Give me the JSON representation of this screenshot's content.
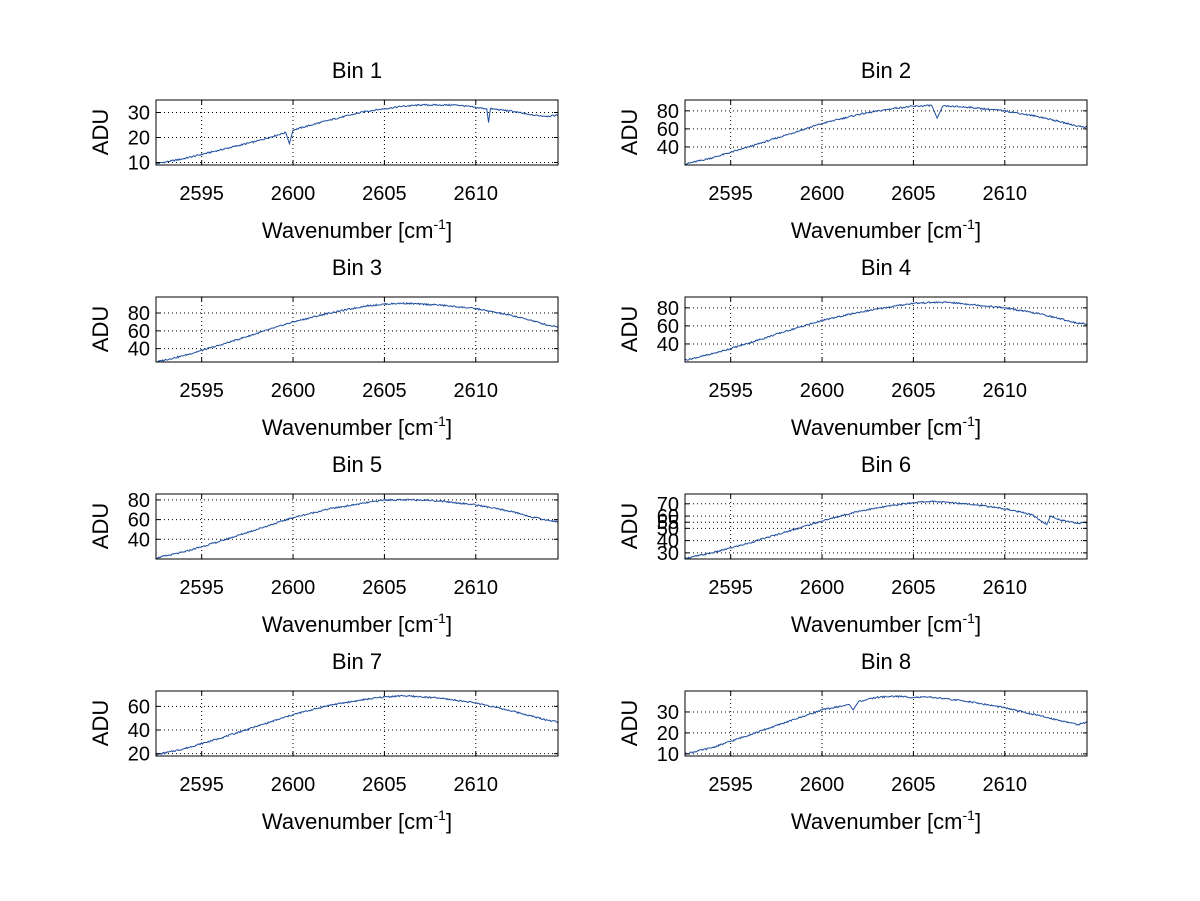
{
  "figure": {
    "background": "#ffffff",
    "line_color": "#1f4e9f",
    "grid_color": "#000000"
  },
  "chart_data": [
    {
      "type": "line",
      "title": "Bin 1",
      "xlabel": {
        "main": "Wavenumber [cm",
        "sup": "-1",
        "close": "]"
      },
      "ylabel": "ADU",
      "xlim": [
        2592.5,
        2614.5
      ],
      "ylim": [
        9,
        35
      ],
      "xticks": [
        2595,
        2600,
        2605,
        2610
      ],
      "yticks": [
        10,
        20,
        30
      ],
      "grid": true,
      "series": [
        {
          "name": "Bin 1",
          "x": [
            2592.5,
            2594,
            2596,
            2598,
            2599.6,
            2599.8,
            2600,
            2602,
            2604,
            2606,
            2607,
            2608,
            2609,
            2610,
            2610.6,
            2610.7,
            2610.8,
            2612,
            2613,
            2614,
            2614.5
          ],
          "y": [
            9.5,
            11.5,
            15,
            18.5,
            22,
            17.5,
            23,
            27,
            30.5,
            32.5,
            33,
            33,
            33,
            32,
            31.5,
            26,
            31.5,
            30.5,
            29,
            28.5,
            29
          ]
        }
      ]
    },
    {
      "type": "line",
      "title": "Bin 2",
      "xlabel": {
        "main": "Wavenumber [cm",
        "sup": "-1",
        "close": "]"
      },
      "ylabel": "ADU",
      "xlim": [
        2592.5,
        2614.5
      ],
      "ylim": [
        20,
        92
      ],
      "xticks": [
        2595,
        2600,
        2605,
        2610
      ],
      "yticks": [
        40,
        60,
        80
      ],
      "grid": true,
      "series": [
        {
          "name": "Bin 2",
          "x": [
            2592.5,
            2594,
            2596,
            2598,
            2600,
            2602,
            2604,
            2605,
            2606,
            2606.3,
            2606.6,
            2607,
            2608,
            2610,
            2612,
            2613,
            2614,
            2614.5
          ],
          "y": [
            21,
            28,
            40,
            53,
            66,
            76,
            83,
            85,
            86,
            72,
            85,
            85,
            84,
            80,
            73,
            68,
            63,
            62
          ]
        }
      ]
    },
    {
      "type": "line",
      "title": "Bin 3",
      "xlabel": {
        "main": "Wavenumber [cm",
        "sup": "-1",
        "close": "]"
      },
      "ylabel": "ADU",
      "xlim": [
        2592.5,
        2614.5
      ],
      "ylim": [
        25,
        98
      ],
      "xticks": [
        2595,
        2600,
        2605,
        2610
      ],
      "yticks": [
        40,
        60,
        80
      ],
      "grid": true,
      "series": [
        {
          "name": "Bin 3",
          "x": [
            2592.5,
            2594,
            2596,
            2598,
            2600,
            2602,
            2604,
            2605,
            2606,
            2607,
            2608,
            2610,
            2612,
            2613,
            2614,
            2614.5
          ],
          "y": [
            25,
            32,
            44,
            57,
            70,
            80,
            88,
            90,
            91,
            90,
            89,
            85,
            77,
            72,
            66,
            65
          ]
        }
      ]
    },
    {
      "type": "line",
      "title": "Bin 4",
      "xlabel": {
        "main": "Wavenumber [cm",
        "sup": "-1",
        "close": "]"
      },
      "ylabel": "ADU",
      "xlim": [
        2592.5,
        2614.5
      ],
      "ylim": [
        20,
        92
      ],
      "xticks": [
        2595,
        2600,
        2605,
        2610
      ],
      "yticks": [
        40,
        60,
        80
      ],
      "grid": true,
      "series": [
        {
          "name": "Bin 4",
          "x": [
            2592.5,
            2594,
            2596,
            2598,
            2600,
            2602,
            2604,
            2605,
            2606,
            2607,
            2608,
            2610,
            2612,
            2613,
            2614,
            2614.5
          ],
          "y": [
            22,
            29,
            41,
            54,
            66,
            75,
            82,
            85,
            86,
            86,
            84,
            80,
            73,
            68,
            63,
            62
          ]
        }
      ]
    },
    {
      "type": "line",
      "title": "Bin 5",
      "xlabel": {
        "main": "Wavenumber [cm",
        "sup": "-1",
        "close": "]"
      },
      "ylabel": "ADU",
      "xlim": [
        2592.5,
        2614.5
      ],
      "ylim": [
        20,
        86
      ],
      "xticks": [
        2595,
        2600,
        2605,
        2610
      ],
      "yticks": [
        40,
        60,
        80
      ],
      "grid": true,
      "series": [
        {
          "name": "Bin 5",
          "x": [
            2592.5,
            2594,
            2596,
            2598,
            2600,
            2602,
            2604,
            2605,
            2606,
            2607,
            2608,
            2610,
            2612,
            2613,
            2614,
            2614.5
          ],
          "y": [
            21,
            27,
            38,
            50,
            62,
            71,
            77,
            80,
            80,
            80,
            79,
            75,
            68,
            63,
            59,
            58
          ]
        }
      ]
    },
    {
      "type": "line",
      "title": "Bin 6",
      "xlabel": {
        "main": "Wavenumber [cm",
        "sup": "-1",
        "close": "]"
      },
      "ylabel": "ADU",
      "xlim": [
        2592.5,
        2614.5
      ],
      "ylim": [
        25,
        78
      ],
      "xticks": [
        2595,
        2600,
        2605,
        2610
      ],
      "yticks": [
        30,
        40,
        50,
        55,
        60,
        70
      ],
      "grid": true,
      "series": [
        {
          "name": "Bin 6",
          "x": [
            2592.5,
            2594,
            2596,
            2598,
            2600,
            2602,
            2604,
            2605,
            2606,
            2607,
            2608,
            2610,
            2611.5,
            2612.3,
            2612.5,
            2613,
            2614,
            2614.5
          ],
          "y": [
            25.5,
            30,
            38,
            47,
            56,
            64,
            69,
            71,
            72,
            71,
            70,
            66,
            61,
            53,
            60,
            57,
            54,
            55
          ]
        }
      ]
    },
    {
      "type": "line",
      "title": "Bin 7",
      "xlabel": {
        "main": "Wavenumber [cm",
        "sup": "-1",
        "close": "]"
      },
      "ylabel": "ADU",
      "xlim": [
        2592.5,
        2614.5
      ],
      "ylim": [
        18,
        73
      ],
      "xticks": [
        2595,
        2600,
        2605,
        2610
      ],
      "yticks": [
        20,
        40,
        60
      ],
      "grid": true,
      "series": [
        {
          "name": "Bin 7",
          "x": [
            2592.5,
            2594,
            2596,
            2598,
            2600,
            2602,
            2604,
            2605,
            2606,
            2607,
            2608,
            2610,
            2612,
            2613,
            2614,
            2614.5
          ],
          "y": [
            19,
            24,
            33,
            43,
            53,
            61,
            66,
            68,
            69,
            68,
            67,
            63,
            56,
            52,
            48,
            47
          ]
        }
      ]
    },
    {
      "type": "line",
      "title": "Bin 8",
      "xlabel": {
        "main": "Wavenumber [cm",
        "sup": "-1",
        "close": "]"
      },
      "ylabel": "ADU",
      "xlim": [
        2592.5,
        2614.5
      ],
      "ylim": [
        9,
        40
      ],
      "xticks": [
        2595,
        2600,
        2605,
        2610
      ],
      "yticks": [
        10,
        20,
        30
      ],
      "grid": true,
      "series": [
        {
          "name": "Bin 8",
          "x": [
            2592.5,
            2594,
            2596,
            2598,
            2600,
            2601.5,
            2601.7,
            2602,
            2603,
            2604,
            2605,
            2606,
            2607,
            2608,
            2610,
            2612,
            2613,
            2614,
            2614.5
          ],
          "y": [
            10,
            13,
            19,
            25,
            31,
            33.5,
            31,
            35,
            37,
            37.5,
            37,
            37,
            36,
            35,
            32,
            28,
            26,
            24,
            25
          ]
        }
      ]
    }
  ]
}
